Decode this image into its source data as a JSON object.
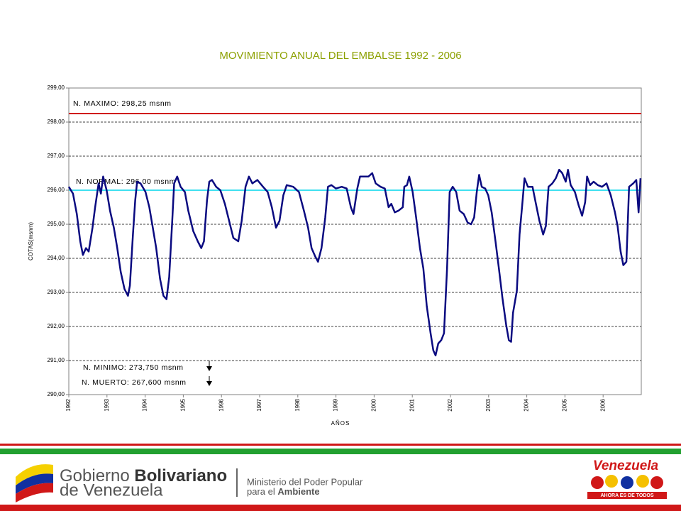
{
  "chart_data": {
    "type": "line",
    "title": "MOVIMIENTO ANUAL DEL EMBALSE 1992 - 2006",
    "x_label": "AÑOS",
    "y_label": "COTAS(msnm)",
    "xlim": [
      1992,
      2007
    ],
    "xticks": [
      1992,
      1993,
      1994,
      1995,
      1996,
      1997,
      1998,
      1999,
      2000,
      2001,
      2002,
      2003,
      2004,
      2005,
      2006
    ],
    "ylim": [
      290,
      299
    ],
    "yticks": [
      {
        "value": 290,
        "label": "290,00"
      },
      {
        "value": 291,
        "label": "291,00"
      },
      {
        "value": 292,
        "label": "292,00"
      },
      {
        "value": 293,
        "label": "293,00"
      },
      {
        "value": 294,
        "label": "294,00"
      },
      {
        "value": 295,
        "label": "295,00"
      },
      {
        "value": 296,
        "label": "296,00"
      },
      {
        "value": 297,
        "label": "297,00"
      },
      {
        "value": 298,
        "label": "298,00"
      },
      {
        "value": 299,
        "label": "299,00"
      }
    ],
    "grid": true,
    "color": "#0a0a80",
    "x": [
      1992.0,
      1992.11,
      1992.21,
      1992.3,
      1992.37,
      1992.45,
      1992.52,
      1992.62,
      1992.69,
      1992.78,
      1992.84,
      1992.9,
      1992.99,
      1993.08,
      1993.18,
      1993.27,
      1993.36,
      1993.46,
      1993.55,
      1993.6,
      1993.68,
      1993.74,
      1993.79,
      1993.88,
      1994.01,
      1994.11,
      1994.2,
      1994.29,
      1994.39,
      1994.48,
      1994.56,
      1994.63,
      1994.71,
      1994.76,
      1994.84,
      1994.93,
      1995.04,
      1995.13,
      1995.26,
      1995.38,
      1995.47,
      1995.54,
      1995.62,
      1995.68,
      1995.75,
      1995.86,
      1995.97,
      1996.09,
      1996.2,
      1996.31,
      1996.44,
      1996.53,
      1996.63,
      1996.72,
      1996.81,
      1996.94,
      1997.09,
      1997.21,
      1997.32,
      1997.43,
      1997.52,
      1997.62,
      1997.71,
      1997.88,
      1998.03,
      1998.16,
      1998.27,
      1998.36,
      1998.46,
      1998.53,
      1998.62,
      1998.72,
      1998.79,
      1998.88,
      1999.0,
      1999.15,
      1999.28,
      1999.39,
      1999.46,
      1999.56,
      1999.63,
      1999.74,
      1999.85,
      1999.95,
      2000.04,
      2000.17,
      2000.28,
      2000.38,
      2000.45,
      2000.54,
      2000.64,
      2000.75,
      2000.79,
      2000.86,
      2000.92,
      2001.01,
      2001.1,
      2001.2,
      2001.29,
      2001.38,
      2001.48,
      2001.55,
      2001.61,
      2001.68,
      2001.76,
      2001.83,
      2001.91,
      2001.98,
      2002.06,
      2002.15,
      2002.24,
      2002.35,
      2002.45,
      2002.54,
      2002.62,
      2002.69,
      2002.75,
      2002.82,
      2002.91,
      2002.99,
      2003.08,
      2003.18,
      2003.27,
      2003.36,
      2003.46,
      2003.53,
      2003.59,
      2003.64,
      2003.74,
      2003.81,
      2003.88,
      2003.94,
      2004.03,
      2004.15,
      2004.24,
      2004.33,
      2004.43,
      2004.5,
      2004.57,
      2004.67,
      2004.76,
      2004.85,
      2004.93,
      2005.02,
      2005.08,
      2005.15,
      2005.26,
      2005.36,
      2005.45,
      2005.53,
      2005.58,
      2005.66,
      2005.75,
      2005.86,
      2005.97,
      2006.09,
      2006.2,
      2006.31,
      2006.38,
      2006.46,
      2006.53,
      2006.61,
      2006.68,
      2006.79,
      2006.87,
      2006.93,
      2006.98
    ],
    "values": [
      296.1,
      295.9,
      295.3,
      294.5,
      294.1,
      294.3,
      294.2,
      294.9,
      295.5,
      296.2,
      295.9,
      296.4,
      296.0,
      295.4,
      294.9,
      294.3,
      293.6,
      293.1,
      292.9,
      293.2,
      294.7,
      295.7,
      296.25,
      296.2,
      295.95,
      295.5,
      294.9,
      294.3,
      293.4,
      292.9,
      292.8,
      293.45,
      295.1,
      296.2,
      296.4,
      296.1,
      295.95,
      295.4,
      294.8,
      294.5,
      294.3,
      294.5,
      295.7,
      296.25,
      296.3,
      296.1,
      296.0,
      295.6,
      295.1,
      294.6,
      294.5,
      295.1,
      296.1,
      296.4,
      296.2,
      296.3,
      296.1,
      295.95,
      295.5,
      294.9,
      295.1,
      295.85,
      296.15,
      296.1,
      295.95,
      295.4,
      294.9,
      294.3,
      294.05,
      293.9,
      294.3,
      295.2,
      296.1,
      296.15,
      296.05,
      296.1,
      296.05,
      295.5,
      295.3,
      296.05,
      296.4,
      296.4,
      296.4,
      296.5,
      296.2,
      296.1,
      296.05,
      295.5,
      295.6,
      295.35,
      295.4,
      295.5,
      296.1,
      296.15,
      296.4,
      295.95,
      295.2,
      294.3,
      293.7,
      292.6,
      291.8,
      291.3,
      291.15,
      291.5,
      291.6,
      291.8,
      293.7,
      295.95,
      296.1,
      295.95,
      295.4,
      295.3,
      295.05,
      295.0,
      295.2,
      295.95,
      296.45,
      296.1,
      296.05,
      295.85,
      295.35,
      294.5,
      293.7,
      292.85,
      292.05,
      291.6,
      291.55,
      292.4,
      293.05,
      294.7,
      295.55,
      296.35,
      296.1,
      296.1,
      295.6,
      295.1,
      294.7,
      294.95,
      296.1,
      296.2,
      296.35,
      296.6,
      296.5,
      296.25,
      296.6,
      296.15,
      295.95,
      295.55,
      295.25,
      295.65,
      296.4,
      296.15,
      296.25,
      296.15,
      296.1,
      296.2,
      295.85,
      295.35,
      294.95,
      294.2,
      293.8,
      293.9,
      296.1,
      296.2,
      296.3,
      295.35,
      296.35
    ],
    "reference_lines": [
      {
        "label": "N. MAXIMO: 298,25 msnm",
        "value": 298.25,
        "color": "#d01010"
      },
      {
        "label": "N. NORMAL: 296,00 msnm",
        "value": 296,
        "color": "#40e0f0"
      }
    ],
    "annotations": [
      "N. MINIMO: 273,750 msnm",
      "N. MUERTO: 267,600 msnm"
    ]
  },
  "footer": {
    "gov_line1_a": "Gobierno",
    "gov_line1_b": "Bolivariano",
    "gov_line2": "de Venezuela",
    "ministry_line1": "Ministerio del Poder Popular",
    "ministry_line2_a": "para el",
    "ministry_line2_b": "Ambiente",
    "brand": "Venezuela",
    "slogan": "AHORA ES DE TODOS"
  }
}
